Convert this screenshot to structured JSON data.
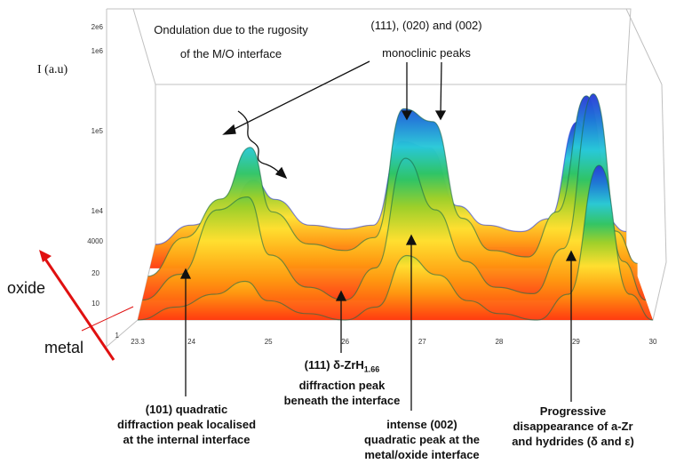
{
  "chart_data": {
    "type": "surface",
    "xlabel": "",
    "ylabel": "I (a.u)",
    "x_ticks": [
      "23.3",
      "24",
      "25",
      "26",
      "27",
      "28",
      "29",
      "30"
    ],
    "y_ticks": [
      "2e6",
      "1e6",
      "1e5",
      "1e4",
      "4000"
    ],
    "depth_ticks": [
      "20",
      "10",
      "1"
    ],
    "depth_axis": {
      "from": "metal",
      "to": "oxide"
    },
    "colormap": [
      "#ff3b10",
      "#ff9a10",
      "#ffe030",
      "#b8d62a",
      "#2fc466",
      "#28c8d8",
      "#1e7ad8",
      "#2a3ad8"
    ],
    "profiles": [
      {
        "depth": 20,
        "x": [
          23.3,
          23.8,
          24.3,
          24.7,
          25.0,
          25.5,
          26.0,
          26.4,
          26.8,
          27.2,
          27.6,
          28.0,
          28.5,
          28.9,
          29.3,
          29.7,
          30.0
        ],
        "y_log": [
          3.6,
          3.75,
          3.85,
          4.1,
          3.95,
          3.75,
          3.72,
          3.75,
          4.4,
          4.35,
          3.9,
          3.75,
          3.7,
          3.8,
          4.55,
          3.8,
          3.7
        ]
      },
      {
        "depth": 12,
        "x": [
          23.3,
          23.8,
          24.3,
          24.7,
          25.0,
          25.5,
          26.0,
          26.4,
          26.8,
          27.2,
          27.6,
          28.0,
          28.5,
          28.9,
          29.3,
          29.7,
          30.0
        ],
        "y_log": [
          3.6,
          3.9,
          4.2,
          4.6,
          4.1,
          3.85,
          3.8,
          3.9,
          4.9,
          4.8,
          4.05,
          3.8,
          3.75,
          4.1,
          5.0,
          3.95,
          3.7
        ]
      },
      {
        "depth": 6,
        "x": [
          23.3,
          23.8,
          24.3,
          24.7,
          25.0,
          25.5,
          26.0,
          26.4,
          26.8,
          27.2,
          27.6,
          28.0,
          28.5,
          28.9,
          29.3,
          29.7,
          30.0
        ],
        "y_log": [
          3.6,
          3.8,
          4.3,
          4.4,
          3.95,
          3.7,
          3.6,
          3.85,
          4.7,
          4.3,
          3.9,
          3.7,
          3.65,
          4.0,
          5.2,
          3.9,
          3.6
        ]
      },
      {
        "depth": 1,
        "x": [
          23.3,
          23.8,
          24.3,
          24.7,
          25.0,
          25.5,
          26.0,
          26.4,
          26.8,
          27.2,
          27.6,
          28.0,
          28.5,
          28.9,
          29.3,
          29.7,
          30.0
        ],
        "y_log": [
          3.6,
          3.7,
          3.8,
          3.9,
          3.75,
          3.65,
          3.6,
          3.7,
          4.1,
          3.95,
          3.75,
          3.65,
          3.6,
          3.8,
          4.8,
          3.8,
          3.6
        ]
      }
    ]
  },
  "annotations": {
    "ondulation_line1": "Ondulation due to the rugosity",
    "ondulation_line2": "of the M/O interface",
    "monoclinic_line1": "(111), (020) and (002)",
    "monoclinic_line2": "monoclinic peaks",
    "quadratic101_line1": "(101) quadratic",
    "quadratic101_line2": "diffraction peak localised",
    "quadratic101_line3": "at the internal interface",
    "hydride_pre": "(111) δ-ZrH",
    "hydride_sub": "1.66",
    "hydride_line2": "diffraction peak",
    "hydride_line3": "beneath the interface",
    "intense_line1": "intense (002)",
    "intense_line2": "quadratic peak at the",
    "intense_line3": "metal/oxide interface",
    "progressive_line1": "Progressive",
    "progressive_line2": "disappearance of a-Zr",
    "progressive_line3": "and hydrides (δ and ε)"
  },
  "side_labels": {
    "oxide": "oxide",
    "metal": "metal"
  },
  "colors": {
    "red_arrow": "#e01010",
    "box": "#c0c0c0",
    "text": "#111111"
  }
}
